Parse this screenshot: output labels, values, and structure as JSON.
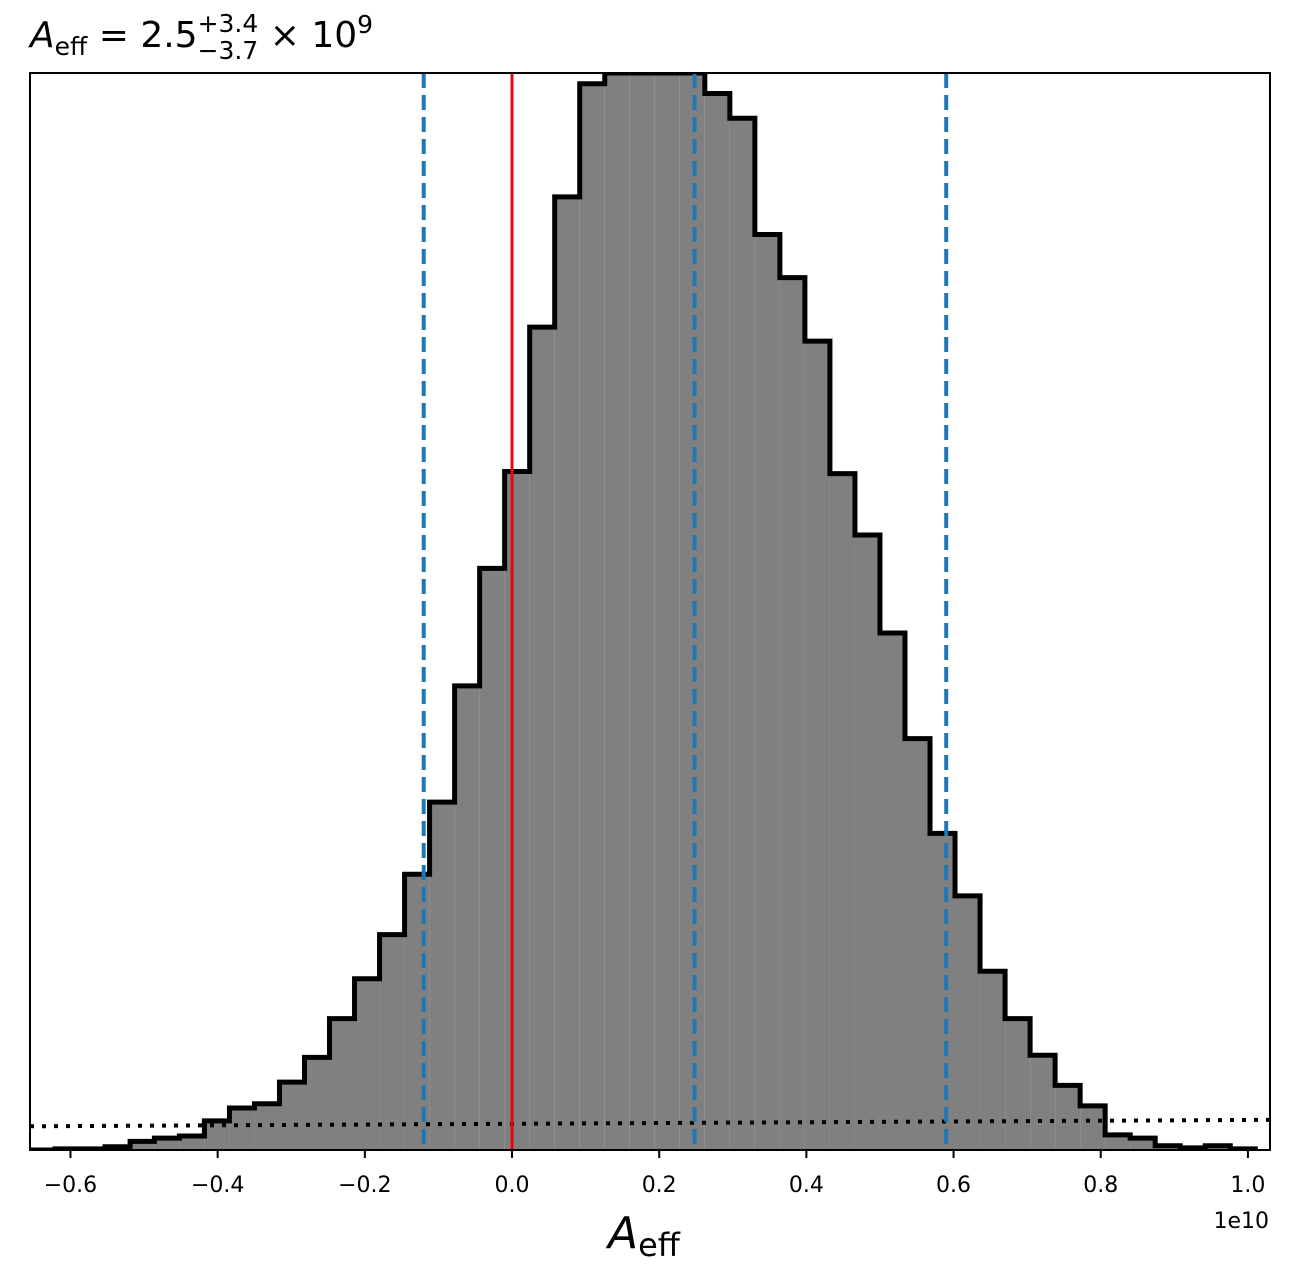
{
  "chart_data": {
    "type": "histogram",
    "title": {
      "symbol": "A",
      "symbol_subscript": "eff",
      "equals": " = ",
      "median": "2.5",
      "upper_error": "+3.4",
      "lower_error": "−3.7",
      "multiplier": " × 10",
      "exponent": "9"
    },
    "xlabel": {
      "symbol": "A",
      "subscript": "eff"
    },
    "x_offset_label": "1e10",
    "xlim": [
      -0.655,
      1.03
    ],
    "ylim": [
      0,
      1.0
    ],
    "x_ticks": [
      -0.6,
      -0.4,
      -0.2,
      0.0,
      0.2,
      0.4,
      0.6,
      0.8,
      1.0
    ],
    "x_tick_labels": [
      "−0.6",
      "−0.4",
      "−0.2",
      "0.0",
      "0.2",
      "0.4",
      "0.6",
      "0.8",
      "1.0"
    ],
    "bin_edges": [
      -0.655,
      -0.621,
      -0.587,
      -0.553,
      -0.519,
      -0.486,
      -0.452,
      -0.418,
      -0.384,
      -0.35,
      -0.316,
      -0.282,
      -0.248,
      -0.214,
      -0.18,
      -0.146,
      -0.112,
      -0.078,
      -0.044,
      -0.01,
      0.024,
      0.058,
      0.092,
      0.126,
      0.16,
      0.194,
      0.228,
      0.262,
      0.296,
      0.33,
      0.364,
      0.398,
      0.432,
      0.466,
      0.5,
      0.534,
      0.568,
      0.602,
      0.636,
      0.67,
      0.704,
      0.738,
      0.772,
      0.806,
      0.84,
      0.874,
      0.908,
      0.942,
      0.976,
      1.01
    ],
    "bin_heights": [
      0.0,
      0.001,
      0.001,
      0.003,
      0.008,
      0.011,
      0.013,
      0.027,
      0.039,
      0.043,
      0.063,
      0.086,
      0.122,
      0.159,
      0.2,
      0.256,
      0.323,
      0.431,
      0.54,
      0.63,
      0.764,
      0.885,
      0.99,
      1.0,
      1.0,
      1.0,
      1.0,
      0.981,
      0.958,
      0.85,
      0.81,
      0.751,
      0.628,
      0.571,
      0.48,
      0.382,
      0.294,
      0.236,
      0.166,
      0.122,
      0.088,
      0.06,
      0.041,
      0.014,
      0.011,
      0.004,
      0.002,
      0.004,
      0.001
    ],
    "bin_heights_note_peak_clipped": true,
    "prior_line": {
      "style": "dotted",
      "color": "#000000",
      "x": [
        -0.655,
        1.03
      ],
      "y": [
        0.022,
        0.028
      ]
    },
    "truth_line": {
      "x": 0.0,
      "color": "#e8070d",
      "style": "solid"
    },
    "quantile_lines": {
      "x": [
        -0.12,
        0.248,
        0.59
      ],
      "color": "#1f77b4",
      "style": "dashed"
    },
    "fill_color": "#808080",
    "edge_color": "#000000",
    "grid": false
  }
}
